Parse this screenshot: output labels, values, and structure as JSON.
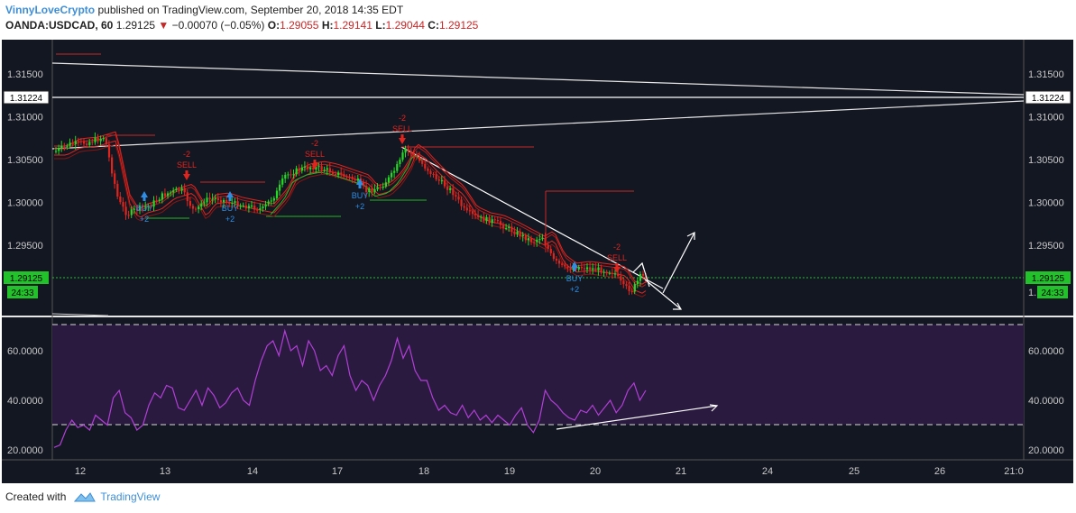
{
  "header": {
    "author": "VinnyLoveCrypto",
    "published_text": "published on TradingView.com, September 20, 2018 14:35 EDT",
    "symbol": "OANDA:USDCAD, 60",
    "last": "1.29125",
    "change": "−0.00070 (−0.05%)",
    "o_label": "O:",
    "o": "1.29055",
    "h_label": "H:",
    "h": "1.29141",
    "l_label": "L:",
    "l": "1.29044",
    "c_label": "C:",
    "c": "1.29125"
  },
  "price_axis": {
    "ticks": [
      "1.31500",
      "1.31000",
      "1.30500",
      "1.30000",
      "1.29500"
    ],
    "tick_values": [
      1.315,
      1.31,
      1.305,
      1.3,
      1.295
    ],
    "marker_level": "1.31224",
    "current_price": "1.29125",
    "countdown": "24:33",
    "partial_tick": "1."
  },
  "rsi_axis": {
    "ticks": [
      "60.0000",
      "40.0000",
      "20.0000"
    ],
    "tick_values": [
      60,
      40,
      20
    ]
  },
  "time_axis": [
    "12",
    "13",
    "14",
    "17",
    "18",
    "19",
    "20",
    "21",
    "24",
    "25",
    "26",
    "21:0"
  ],
  "signals": [
    {
      "type": "buy",
      "text": "BUY",
      "qty": "+2"
    },
    {
      "type": "sell",
      "text": "SELL",
      "qty": "-2"
    },
    {
      "type": "buy",
      "text": "BUY",
      "qty": "+2"
    },
    {
      "type": "sell",
      "text": "SELL",
      "qty": "-2"
    },
    {
      "type": "buy",
      "text": "BUY",
      "qty": "+2"
    },
    {
      "type": "sell",
      "text": "SELL",
      "qty": "-2"
    },
    {
      "type": "buy",
      "text": "BUY",
      "qty": "+2"
    },
    {
      "type": "sell",
      "text": "SELL",
      "qty": "-2"
    }
  ],
  "colors": {
    "background": "#131722",
    "bull": "#26d926",
    "bear": "#e0251f",
    "rsi_line": "#b23fd6",
    "rsi_band": "#2a1a40",
    "buy": "#2f8de4",
    "sell": "#e0251f",
    "price_green": "#22c22a"
  },
  "footer": {
    "created_with": "Created with",
    "brand": "TradingView"
  }
}
